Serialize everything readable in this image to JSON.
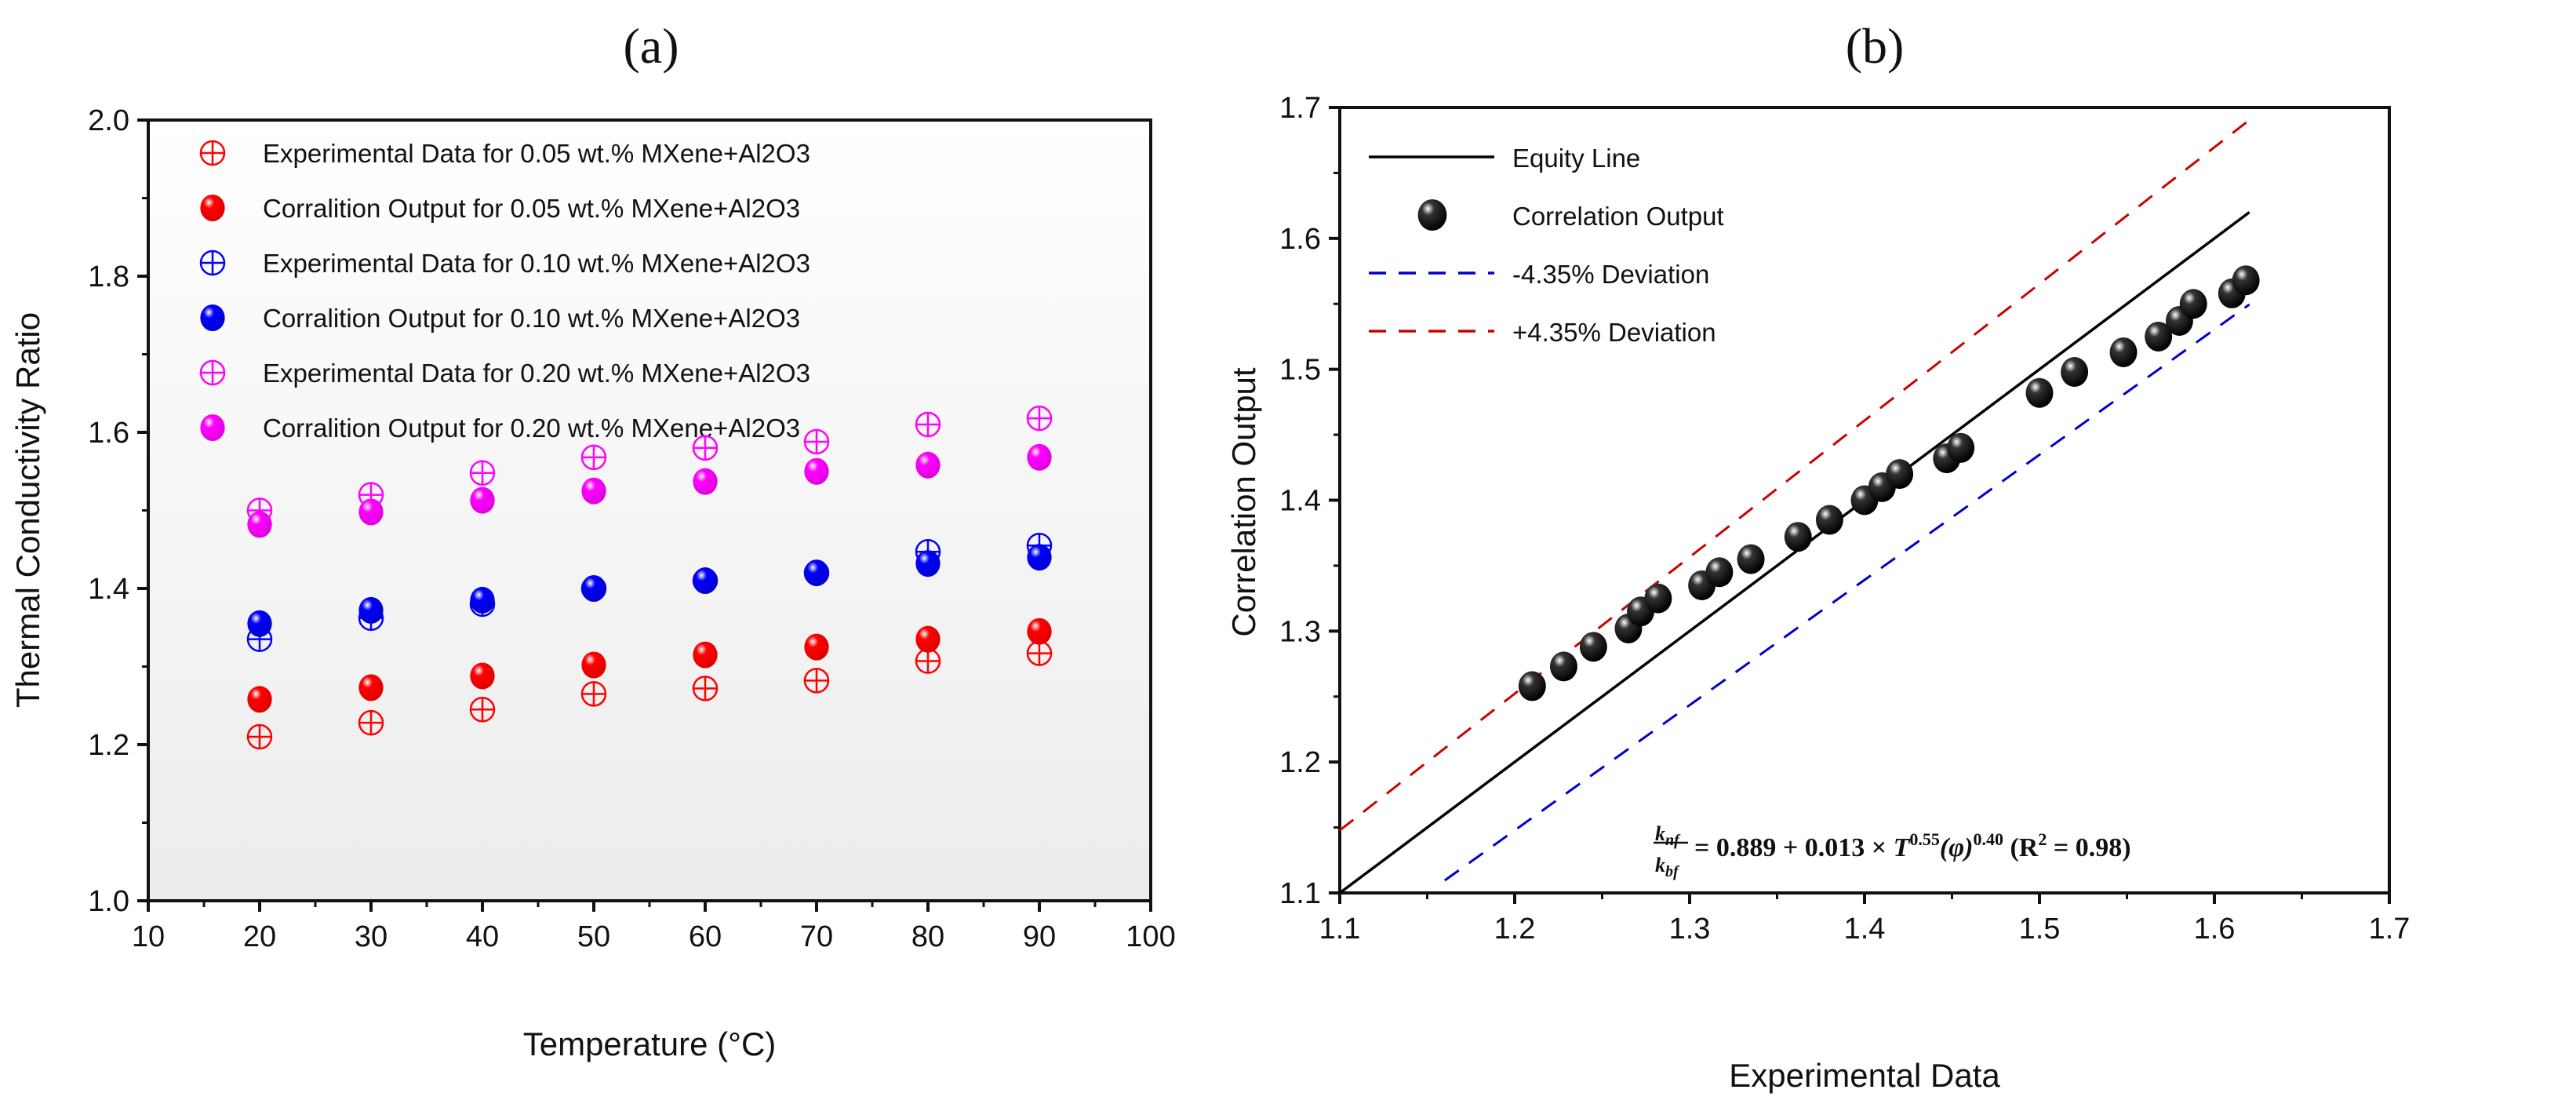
{
  "chart_data": [
    {
      "type": "scatter",
      "panel_label": "(a)",
      "panel_letter": "a",
      "xlabel": "Temperature (°C)",
      "ylabel": "Thermal Conductivity Ratio",
      "xlim": [
        10,
        100
      ],
      "ylim": [
        1.0,
        2.0
      ],
      "xticks": [
        "10",
        "20",
        "30",
        "40",
        "50",
        "60",
        "70",
        "80",
        "90",
        "100"
      ],
      "yticks": [
        "1.0",
        "1.2",
        "1.4",
        "1.6",
        "1.8",
        "2.0"
      ],
      "grid": false,
      "legend_placement": "top-left",
      "x": [
        20,
        30,
        40,
        50,
        60,
        70,
        80,
        90
      ],
      "series": [
        {
          "name": "Experimental Data for 0.05 wt.% MXene+Al2O3",
          "marker": "circle-plus",
          "color": "#ff0000",
          "values": [
            1.21,
            1.228,
            1.245,
            1.265,
            1.272,
            1.282,
            1.307,
            1.317
          ]
        },
        {
          "name": "Corralition Output for 0.05 wt.% MXene+Al2O3",
          "marker": "sphere",
          "color": "#ff0000",
          "values": [
            1.258,
            1.273,
            1.288,
            1.302,
            1.315,
            1.325,
            1.335,
            1.345
          ]
        },
        {
          "name": "Experimental Data for 0.10 wt.% MXene+Al2O3",
          "marker": "circle-plus",
          "color": "#0000ff",
          "values": [
            1.335,
            1.362,
            1.38,
            1.4,
            1.41,
            1.42,
            1.447,
            1.455
          ]
        },
        {
          "name": "Corralition Output for 0.10 wt.% MXene+Al2O3",
          "marker": "sphere",
          "color": "#0000ff",
          "values": [
            1.355,
            1.372,
            1.385,
            1.4,
            1.41,
            1.42,
            1.432,
            1.44
          ]
        },
        {
          "name": "Experimental Data for 0.20 wt.% MXene+Al2O3",
          "marker": "circle-plus",
          "color": "#ff00ff",
          "values": [
            1.5,
            1.52,
            1.548,
            1.568,
            1.58,
            1.588,
            1.61,
            1.618
          ]
        },
        {
          "name": "Corralition Output for 0.20 wt.% MXene+Al2O3",
          "marker": "sphere",
          "color": "#ff00ff",
          "values": [
            1.482,
            1.498,
            1.513,
            1.525,
            1.537,
            1.55,
            1.558,
            1.568
          ]
        }
      ]
    },
    {
      "type": "scatter",
      "panel_label": "(b)",
      "panel_letter": "b",
      "xlabel": "Experimental Data",
      "ylabel": "Correlation Output",
      "xlim": [
        1.1,
        1.7
      ],
      "ylim": [
        1.1,
        1.7
      ],
      "xticks": [
        "1.1",
        "1.2",
        "1.3",
        "1.4",
        "1.5",
        "1.6",
        "1.7"
      ],
      "yticks": [
        "1.1",
        "1.2",
        "1.3",
        "1.4",
        "1.5",
        "1.6",
        "1.7"
      ],
      "grid": false,
      "legend_placement": "top-left",
      "lines": [
        {
          "name": "Equity Line",
          "color": "#000000",
          "style": "solid",
          "factor": 1.0,
          "x": [
            1.1,
            1.62
          ]
        },
        {
          "name": "-4.35% Deviation",
          "color": "#0000cc",
          "style": "dashed",
          "factor": 0.9565,
          "x": [
            1.16,
            1.62
          ]
        },
        {
          "name": "+4.35% Deviation",
          "color": "#cc0000",
          "style": "dashed",
          "factor": 1.0435,
          "x": [
            1.1,
            1.62
          ]
        }
      ],
      "points": {
        "name": "Correlation Output",
        "color": "#111111",
        "x": [
          1.21,
          1.228,
          1.245,
          1.265,
          1.272,
          1.282,
          1.307,
          1.317,
          1.335,
          1.362,
          1.38,
          1.4,
          1.41,
          1.42,
          1.447,
          1.455,
          1.5,
          1.52,
          1.548,
          1.568,
          1.58,
          1.588,
          1.61,
          1.618
        ],
        "y": [
          1.258,
          1.273,
          1.288,
          1.302,
          1.315,
          1.325,
          1.335,
          1.345,
          1.355,
          1.372,
          1.385,
          1.4,
          1.41,
          1.42,
          1.432,
          1.44,
          1.482,
          1.498,
          1.513,
          1.525,
          1.537,
          1.55,
          1.558,
          1.568
        ]
      },
      "annotation": {
        "lhs_num": "k",
        "lhs_num_sub": "nf",
        "lhs_den": "k",
        "lhs_den_sub": "bf",
        "rhs": "= 0.889 + 0.013 × ",
        "T": "T",
        "exp1": "0.55",
        "phi": "(φ)",
        "exp2": "0.40",
        "r2_open": "  (R",
        "r2_exp": "2",
        "r2_close": " = 0.98)"
      }
    }
  ]
}
